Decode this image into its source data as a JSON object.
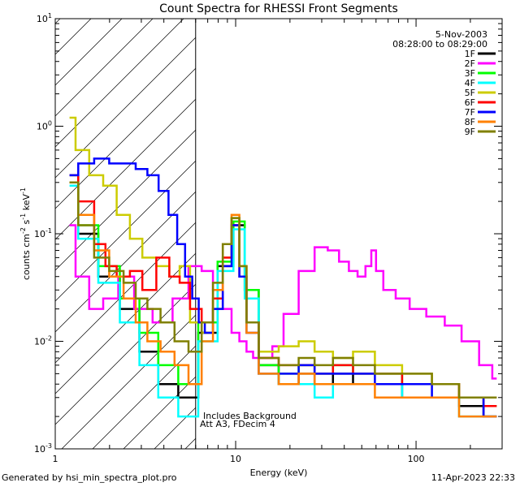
{
  "chart_data": {
    "type": "line",
    "title": "Count Spectra for RHESSI Front Segments",
    "xlabel": "Energy (keV)",
    "ylabel_parts": [
      "counts cm",
      "-2",
      " s",
      "-1",
      " keV",
      "-1"
    ],
    "xscale": "log",
    "yscale": "log",
    "xlim": [
      1,
      300
    ],
    "ylim": [
      0.001,
      10
    ],
    "x_ticks": [
      1,
      10,
      100
    ],
    "x_tick_labels": [
      "1",
      "10",
      "100"
    ],
    "y_ticks": [
      0.001,
      0.01,
      0.1,
      1,
      10
    ],
    "y_tick_labels": [
      [
        "10",
        "-3"
      ],
      [
        "10",
        "-2"
      ],
      [
        "10",
        "-1"
      ],
      [
        "10",
        "0"
      ],
      [
        "10",
        "1"
      ]
    ],
    "hatched_region": [
      1,
      6
    ],
    "date": "5-Nov-2003",
    "time_range": "08:28:00 to 08:29:00",
    "annotations": [
      "Includes Background",
      "Att A3, FDecim 4"
    ],
    "series": [
      {
        "name": "1F",
        "color": "#000000",
        "x": [
          1.2,
          1.5,
          2.0,
          2.6,
          3.3,
          4.2,
          5.5,
          7.0,
          9.0,
          10.5,
          12.0,
          15.0,
          20.0,
          25.0,
          30.0,
          40.0,
          50.0,
          70.0,
          100.0,
          150.0,
          200.0,
          280.0
        ],
        "y": [
          0.3,
          0.1,
          0.04,
          0.02,
          0.008,
          0.004,
          0.003,
          0.012,
          0.05,
          0.12,
          0.03,
          0.006,
          0.004,
          0.005,
          0.004,
          0.005,
          0.004,
          0.004,
          0.003,
          0.003,
          0.0025,
          0.002
        ]
      },
      {
        "name": "2F",
        "color": "#ff00ff",
        "x": [
          1.2,
          1.4,
          1.7,
          2.0,
          2.5,
          3.0,
          4.0,
          5.0,
          6.0,
          7.0,
          8.0,
          9.0,
          10.0,
          11.0,
          12.0,
          13.0,
          15.0,
          17.0,
          20.0,
          25.0,
          30.0,
          35.0,
          40.0,
          45.0,
          50.0,
          55.0,
          58.0,
          62.0,
          70.0,
          85.0,
          100.0,
          130.0,
          160.0,
          200.0,
          250.0,
          280.0
        ],
        "y": [
          0.12,
          0.04,
          0.02,
          0.025,
          0.04,
          0.02,
          0.015,
          0.025,
          0.05,
          0.045,
          0.03,
          0.02,
          0.012,
          0.01,
          0.008,
          0.007,
          0.007,
          0.009,
          0.018,
          0.045,
          0.075,
          0.07,
          0.055,
          0.045,
          0.04,
          0.05,
          0.07,
          0.045,
          0.03,
          0.025,
          0.02,
          0.017,
          0.014,
          0.01,
          0.006,
          0.0045
        ]
      },
      {
        "name": "3F",
        "color": "#00ff00",
        "x": [
          1.2,
          1.5,
          2.0,
          2.6,
          3.3,
          4.2,
          5.5,
          7.0,
          9.0,
          10.5,
          12.0,
          15.0,
          20.0,
          25.0,
          30.0,
          40.0,
          50.0,
          70.0,
          100.0,
          150.0,
          200.0,
          280.0
        ],
        "y": [
          0.35,
          0.12,
          0.05,
          0.025,
          0.012,
          0.006,
          0.004,
          0.015,
          0.055,
          0.13,
          0.03,
          0.006,
          0.005,
          0.006,
          0.005,
          0.006,
          0.005,
          0.005,
          0.004,
          0.004,
          0.003,
          0.0025
        ]
      },
      {
        "name": "4F",
        "color": "#00ffff",
        "x": [
          1.2,
          1.5,
          2.0,
          2.6,
          3.3,
          4.2,
          5.5,
          7.0,
          9.0,
          10.5,
          12.0,
          15.0,
          20.0,
          25.0,
          30.0,
          40.0,
          50.0,
          70.0,
          100.0,
          150.0,
          200.0,
          280.0
        ],
        "y": [
          0.28,
          0.09,
          0.035,
          0.015,
          0.006,
          0.003,
          0.002,
          0.01,
          0.045,
          0.11,
          0.025,
          0.005,
          0.004,
          0.004,
          0.003,
          0.004,
          0.004,
          0.004,
          0.003,
          0.003,
          0.002,
          0.002
        ]
      },
      {
        "name": "5F",
        "color": "#cccc00",
        "x": [
          1.2,
          1.4,
          1.7,
          2.0,
          2.4,
          2.8,
          3.3,
          4.0,
          4.6,
          5.2,
          6.0,
          7.0,
          8.0,
          9.0,
          10.0,
          11.0,
          12.0,
          15.0,
          20.0,
          25.0,
          30.0,
          40.0,
          50.0,
          70.0,
          100.0,
          150.0,
          200.0,
          280.0
        ],
        "y": [
          1.2,
          0.6,
          0.35,
          0.28,
          0.15,
          0.09,
          0.06,
          0.05,
          0.04,
          0.05,
          0.015,
          0.012,
          0.02,
          0.06,
          0.14,
          0.05,
          0.015,
          0.008,
          0.009,
          0.01,
          0.008,
          0.007,
          0.008,
          0.006,
          0.005,
          0.004,
          0.003,
          0.003
        ]
      },
      {
        "name": "6F",
        "color": "#ff0000",
        "x": [
          1.2,
          1.5,
          1.8,
          2.0,
          2.4,
          2.8,
          3.3,
          4.0,
          4.6,
          5.2,
          6.0,
          7.0,
          8.0,
          9.0,
          10.0,
          11.0,
          12.0,
          15.0,
          20.0,
          25.0,
          30.0,
          40.0,
          50.0,
          70.0,
          100.0,
          150.0,
          200.0,
          280.0
        ],
        "y": [
          0.35,
          0.2,
          0.08,
          0.05,
          0.04,
          0.045,
          0.03,
          0.06,
          0.04,
          0.035,
          0.02,
          0.015,
          0.025,
          0.06,
          0.12,
          0.04,
          0.015,
          0.007,
          0.006,
          0.006,
          0.005,
          0.006,
          0.005,
          0.005,
          0.004,
          0.004,
          0.003,
          0.0025
        ]
      },
      {
        "name": "7F",
        "color": "#0000ff",
        "x": [
          1.2,
          1.5,
          1.8,
          2.2,
          2.6,
          3.0,
          3.5,
          4.0,
          4.5,
          5.0,
          5.5,
          6.0,
          6.5,
          7.0,
          8.0,
          9.0,
          10.0,
          11.0,
          12.0,
          15.0,
          20.0,
          25.0,
          30.0,
          40.0,
          50.0,
          70.0,
          100.0,
          150.0,
          200.0,
          280.0
        ],
        "y": [
          0.35,
          0.45,
          0.5,
          0.45,
          0.45,
          0.4,
          0.35,
          0.25,
          0.15,
          0.08,
          0.04,
          0.025,
          0.015,
          0.012,
          0.02,
          0.05,
          0.12,
          0.04,
          0.012,
          0.005,
          0.005,
          0.006,
          0.005,
          0.005,
          0.005,
          0.004,
          0.004,
          0.003,
          0.003,
          0.002
        ]
      },
      {
        "name": "8F",
        "color": "#ff8000",
        "x": [
          1.2,
          1.5,
          1.8,
          2.2,
          2.6,
          3.0,
          3.5,
          4.2,
          5.0,
          6.0,
          7.0,
          8.0,
          9.0,
          10.0,
          11.0,
          12.0,
          15.0,
          20.0,
          25.0,
          30.0,
          40.0,
          50.0,
          70.0,
          100.0,
          150.0,
          200.0,
          280.0
        ],
        "y": [
          0.3,
          0.15,
          0.07,
          0.04,
          0.025,
          0.015,
          0.01,
          0.008,
          0.006,
          0.004,
          0.01,
          0.03,
          0.08,
          0.15,
          0.05,
          0.012,
          0.005,
          0.004,
          0.005,
          0.004,
          0.004,
          0.004,
          0.003,
          0.003,
          0.003,
          0.002,
          0.002
        ]
      },
      {
        "name": "9F",
        "color": "#808000",
        "x": [
          1.2,
          1.5,
          1.8,
          2.2,
          2.6,
          3.0,
          3.5,
          4.2,
          5.0,
          6.0,
          7.0,
          8.0,
          9.0,
          10.0,
          11.0,
          12.0,
          15.0,
          20.0,
          25.0,
          30.0,
          40.0,
          50.0,
          70.0,
          100.0,
          150.0,
          200.0,
          280.0
        ],
        "y": [
          0.3,
          0.12,
          0.06,
          0.045,
          0.035,
          0.025,
          0.02,
          0.015,
          0.01,
          0.008,
          0.015,
          0.035,
          0.08,
          0.14,
          0.05,
          0.015,
          0.007,
          0.006,
          0.007,
          0.006,
          0.007,
          0.006,
          0.005,
          0.005,
          0.004,
          0.003,
          0.003
        ]
      }
    ]
  },
  "footer": {
    "generated_by": "Generated by hsi_min_spectra_plot.pro",
    "timestamp": "11-Apr-2023 22:33"
  }
}
